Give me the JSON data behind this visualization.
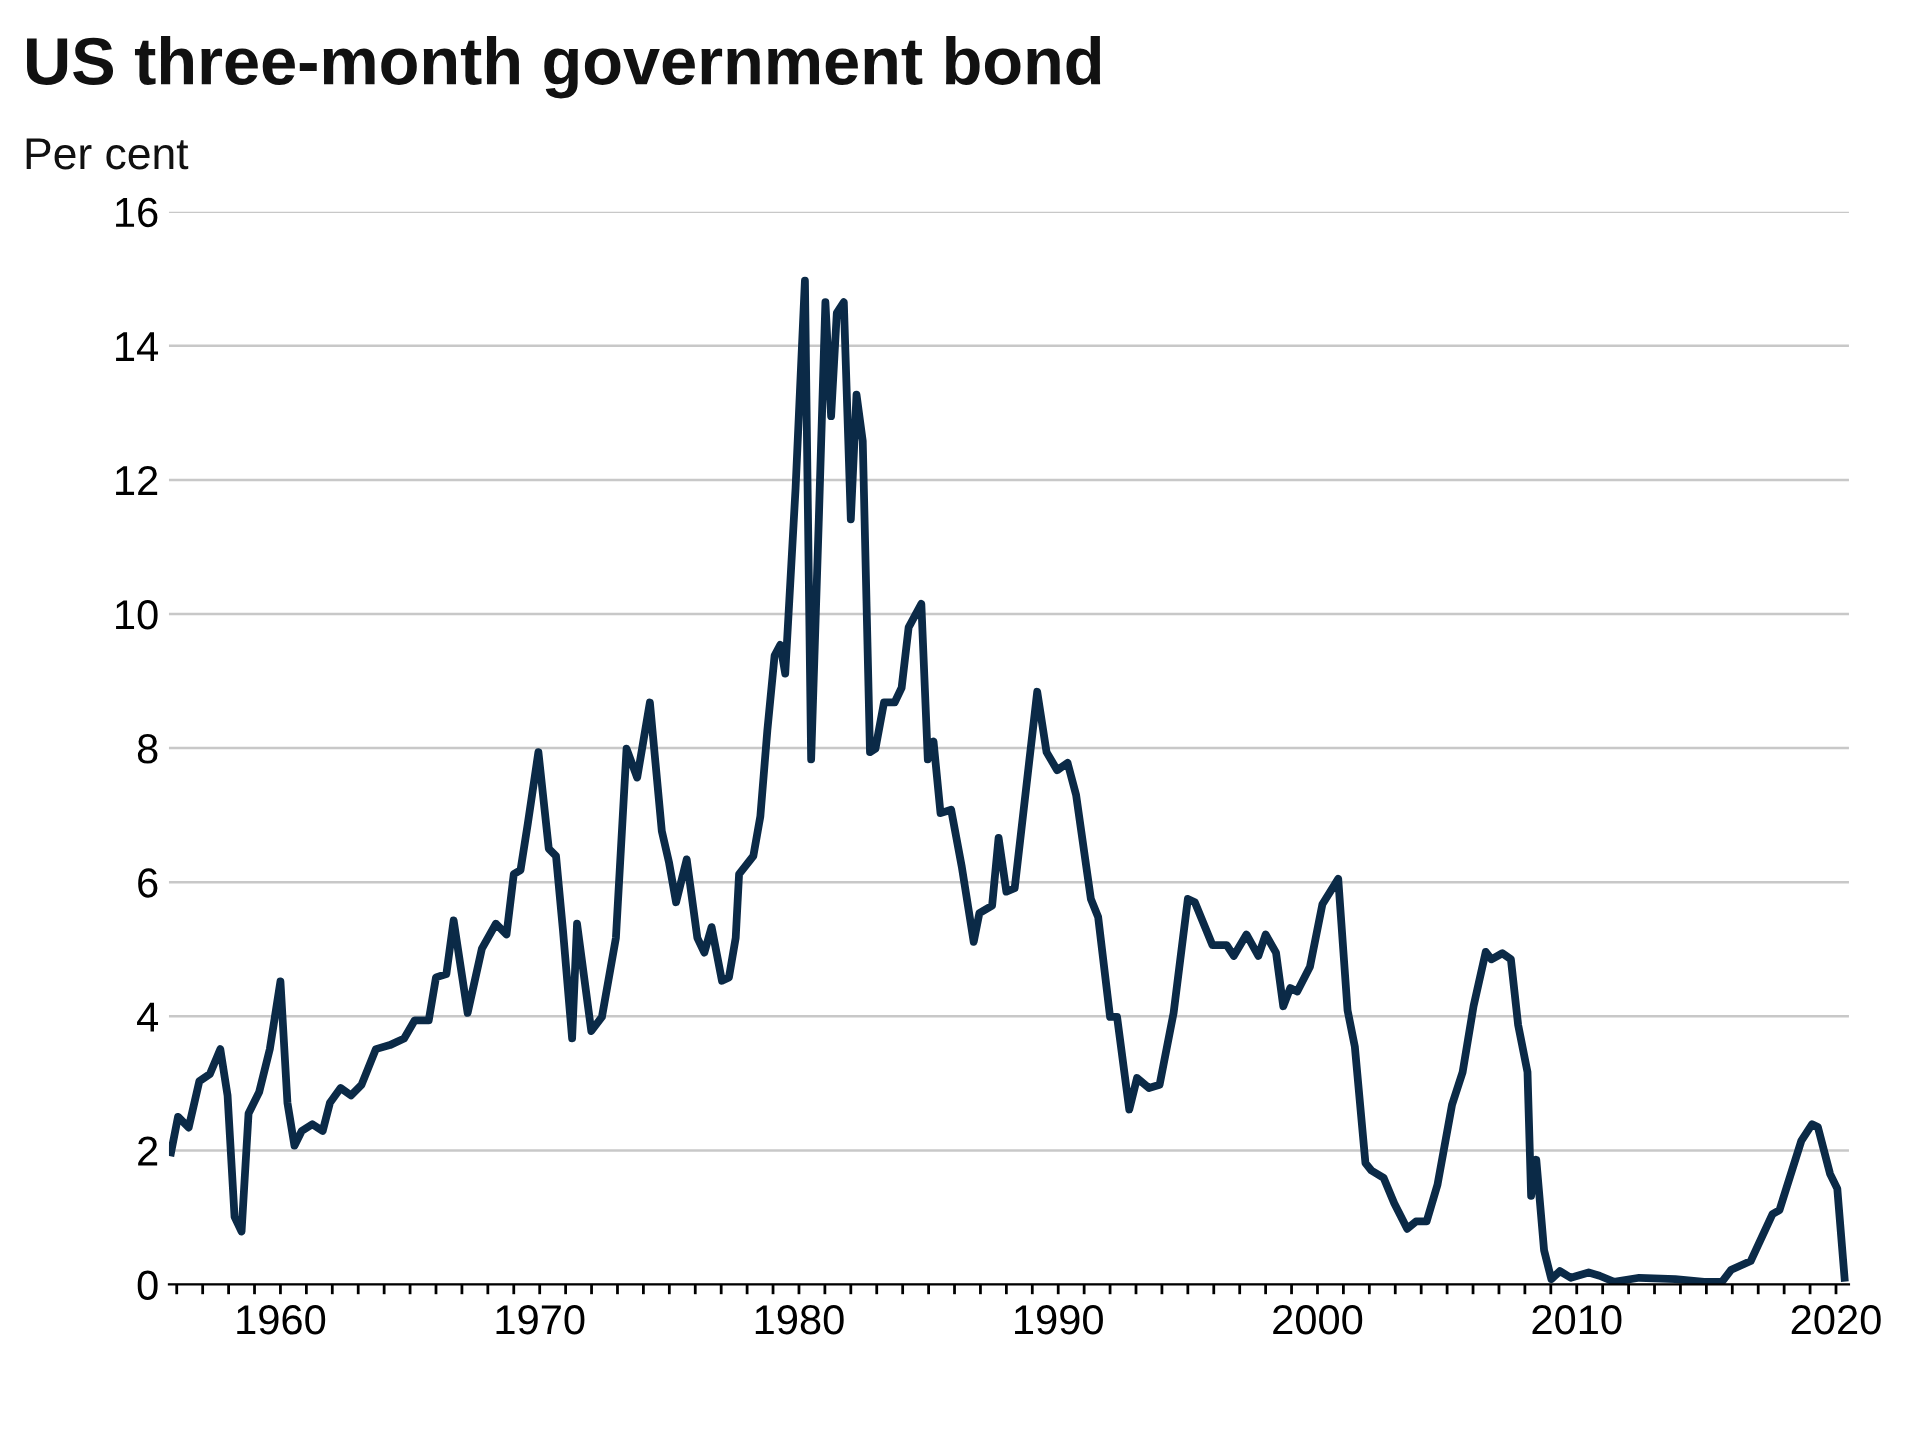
{
  "chart_data": {
    "type": "line",
    "title": "US three-month government bond",
    "ylabel": "Per cent",
    "x": [
      1955.78,
      1956.05,
      1956.46,
      1956.87,
      1957.28,
      1957.68,
      1957.96,
      1958.23,
      1958.5,
      1958.77,
      1959.18,
      1959.59,
      1960.0,
      1960.27,
      1960.54,
      1960.82,
      1961.23,
      1961.63,
      1961.91,
      1962.32,
      1962.72,
      1963.13,
      1963.68,
      1964.22,
      1964.77,
      1965.18,
      1965.72,
      1966.0,
      1966.4,
      1966.68,
      1967.22,
      1967.77,
      1968.31,
      1968.72,
      1969.0,
      1969.26,
      1969.54,
      1969.95,
      1970.35,
      1970.63,
      1970.9,
      1971.25,
      1971.44,
      1971.99,
      1972.4,
      1972.94,
      1973.35,
      1973.76,
      1974.25,
      1974.71,
      1974.99,
      1975.26,
      1975.67,
      1976.08,
      1976.35,
      1976.63,
      1977.03,
      1977.3,
      1977.56,
      1977.69,
      1978.24,
      1978.51,
      1978.78,
      1979.06,
      1979.28,
      1979.47,
      1979.87,
      1980.23,
      1980.47,
      1980.77,
      1981.02,
      1981.24,
      1981.46,
      1981.73,
      1982.0,
      1982.22,
      1982.46,
      1982.74,
      1982.95,
      1983.28,
      1983.69,
      1983.96,
      1984.23,
      1984.72,
      1984.97,
      1985.19,
      1985.46,
      1985.87,
      1986.28,
      1986.74,
      1986.96,
      1987.45,
      1987.7,
      1988.0,
      1988.32,
      1989.19,
      1989.55,
      1989.96,
      1990.36,
      1990.69,
      1991.26,
      1991.54,
      1992.0,
      1992.27,
      1992.74,
      1993.04,
      1993.5,
      1993.91,
      1994.45,
      1995.0,
      1995.27,
      1995.95,
      1996.5,
      1996.77,
      1997.26,
      1997.72,
      1998.0,
      1998.4,
      1998.68,
      1998.95,
      1999.22,
      1999.71,
      2000.19,
      2000.8,
      2001.16,
      2001.44,
      2001.85,
      2002.08,
      2002.55,
      2002.96,
      2003.46,
      2003.8,
      2004.21,
      2004.63,
      2005.19,
      2005.6,
      2006.02,
      2006.49,
      2006.71,
      2007.13,
      2007.46,
      2007.74,
      2008.1,
      2008.24,
      2008.44,
      2008.74,
      2009.02,
      2009.35,
      2009.77,
      2010.46,
      2010.88,
      2011.44,
      2012.41,
      2013.8,
      2014.91,
      2015.6,
      2015.96,
      2016.71,
      2017.55,
      2017.82,
      2018.66,
      2019.08,
      2019.3,
      2019.77,
      2020.05,
      2020.33
    ],
    "series": [
      {
        "color": "#0b2a47",
        "values": [
          1.97,
          2.5,
          2.34,
          3.03,
          3.14,
          3.51,
          2.82,
          1.01,
          0.79,
          2.55,
          2.87,
          3.51,
          4.52,
          2.71,
          2.07,
          2.29,
          2.39,
          2.29,
          2.71,
          2.93,
          2.82,
          2.98,
          3.51,
          3.57,
          3.67,
          3.94,
          3.94,
          4.58,
          4.63,
          5.43,
          4.05,
          5.01,
          5.38,
          5.22,
          6.12,
          6.18,
          6.87,
          7.94,
          6.5,
          6.39,
          5.27,
          3.67,
          5.38,
          3.78,
          3.99,
          5.17,
          7.99,
          7.56,
          8.68,
          6.76,
          6.29,
          5.7,
          6.34,
          5.17,
          4.95,
          5.33,
          4.53,
          4.58,
          5.17,
          6.12,
          6.39,
          6.98,
          8.26,
          9.38,
          9.54,
          9.11,
          11.88,
          14.97,
          7.83,
          11.46,
          14.65,
          12.95,
          14.49,
          14.65,
          11.41,
          13.27,
          12.58,
          7.94,
          7.99,
          8.68,
          8.68,
          8.9,
          9.8,
          10.15,
          7.83,
          8.1,
          7.03,
          7.08,
          6.23,
          5.11,
          5.54,
          5.65,
          6.66,
          5.86,
          5.91,
          8.84,
          7.94,
          7.67,
          7.78,
          7.3,
          5.75,
          5.48,
          3.99,
          3.99,
          2.61,
          3.08,
          2.93,
          2.98,
          4.05,
          5.75,
          5.7,
          5.06,
          5.06,
          4.9,
          5.22,
          4.9,
          5.22,
          4.95,
          4.15,
          4.42,
          4.37,
          4.74,
          5.67,
          6.05,
          4.09,
          3.55,
          1.81,
          1.7,
          1.59,
          1.21,
          0.83,
          0.94,
          0.94,
          1.49,
          2.68,
          3.17,
          4.15,
          4.96,
          4.85,
          4.94,
          4.85,
          3.87,
          3.17,
          1.32,
          1.86,
          0.51,
          0.08,
          0.2,
          0.1,
          0.18,
          0.13,
          0.04,
          0.1,
          0.08,
          0.04,
          0.04,
          0.22,
          0.35,
          1.05,
          1.11,
          2.14,
          2.39,
          2.35,
          1.65,
          1.43,
          0.1
        ]
      }
    ],
    "xlim": [
      1955.7,
      2020.5
    ],
    "xticks": [
      {
        "value": 1956,
        "label": null
      },
      {
        "value": 1957,
        "label": null
      },
      {
        "value": 1958,
        "label": null
      },
      {
        "value": 1959,
        "label": null
      },
      1960,
      {
        "value": 1961,
        "label": null
      },
      {
        "value": 1962,
        "label": null
      },
      {
        "value": 1963,
        "label": null
      },
      {
        "value": 1964,
        "label": null
      },
      {
        "value": 1965,
        "label": null
      },
      {
        "value": 1966,
        "label": null
      },
      {
        "value": 1967,
        "label": null
      },
      {
        "value": 1968,
        "label": null
      },
      {
        "value": 1969,
        "label": null
      },
      1970,
      {
        "value": 1971,
        "label": null
      },
      {
        "value": 1972,
        "label": null
      },
      {
        "value": 1973,
        "label": null
      },
      {
        "value": 1974,
        "label": null
      },
      {
        "value": 1975,
        "label": null
      },
      {
        "value": 1976,
        "label": null
      },
      {
        "value": 1977,
        "label": null
      },
      {
        "value": 1978,
        "label": null
      },
      {
        "value": 1979,
        "label": null
      },
      1980,
      {
        "value": 1981,
        "label": null
      },
      {
        "value": 1982,
        "label": null
      },
      {
        "value": 1983,
        "label": null
      },
      {
        "value": 1984,
        "label": null
      },
      {
        "value": 1985,
        "label": null
      },
      {
        "value": 1986,
        "label": null
      },
      {
        "value": 1987,
        "label": null
      },
      {
        "value": 1988,
        "label": null
      },
      {
        "value": 1989,
        "label": null
      },
      1990,
      {
        "value": 1991,
        "label": null
      },
      {
        "value": 1992,
        "label": null
      },
      {
        "value": 1993,
        "label": null
      },
      {
        "value": 1994,
        "label": null
      },
      {
        "value": 1995,
        "label": null
      },
      {
        "value": 1996,
        "label": null
      },
      {
        "value": 1997,
        "label": null
      },
      {
        "value": 1998,
        "label": null
      },
      {
        "value": 1999,
        "label": null
      },
      2000,
      {
        "value": 2001,
        "label": null
      },
      {
        "value": 2002,
        "label": null
      },
      {
        "value": 2003,
        "label": null
      },
      {
        "value": 2004,
        "label": null
      },
      {
        "value": 2005,
        "label": null
      },
      {
        "value": 2006,
        "label": null
      },
      {
        "value": 2007,
        "label": null
      },
      {
        "value": 2008,
        "label": null
      },
      {
        "value": 2009,
        "label": null
      },
      2010,
      {
        "value": 2011,
        "label": null
      },
      {
        "value": 2012,
        "label": null
      },
      {
        "value": 2013,
        "label": null
      },
      {
        "value": 2014,
        "label": null
      },
      {
        "value": 2015,
        "label": null
      },
      {
        "value": 2016,
        "label": null
      },
      {
        "value": 2017,
        "label": null
      },
      {
        "value": 2018,
        "label": null
      },
      {
        "value": 2019,
        "label": null
      },
      2020
    ],
    "ylim": [
      0,
      16
    ],
    "yticks": [
      0,
      2,
      4,
      6,
      8,
      10,
      12,
      14,
      16
    ],
    "grid": "y",
    "marker": "none",
    "line_style": "solid"
  }
}
